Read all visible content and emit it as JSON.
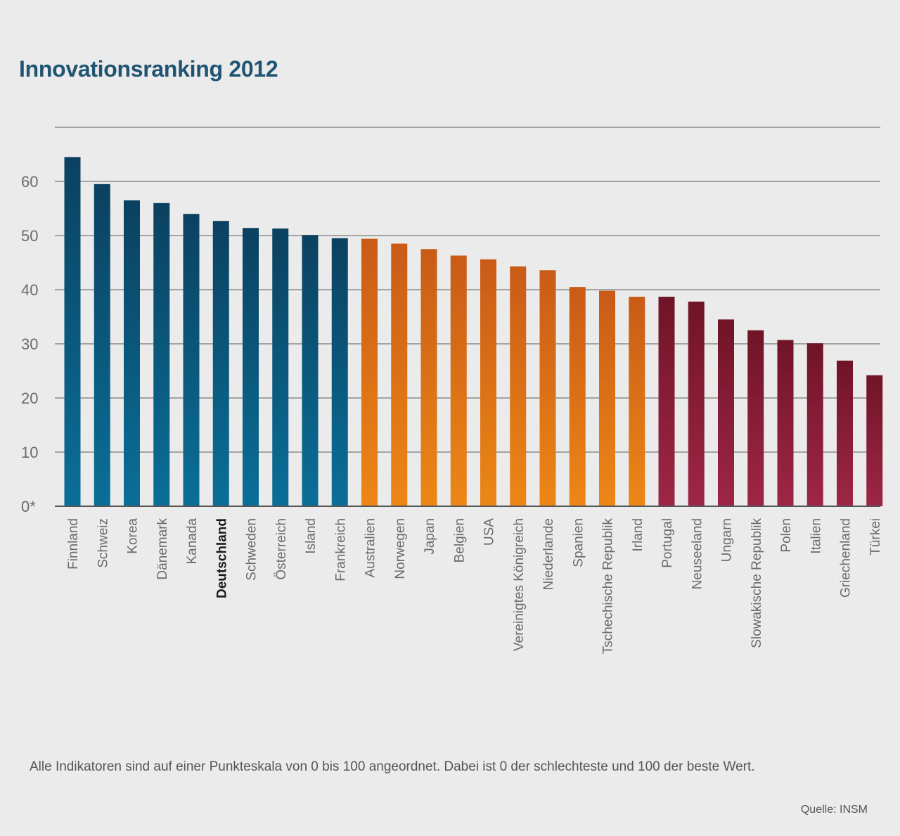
{
  "title": "Innovationsranking 2012",
  "footnote": "Alle Indikatoren sind auf einer Punkteskala von 0 bis 100 angeordnet. Dabei ist 0 der schlechteste und 100 der beste Wert.",
  "source": "Quelle: INSM",
  "chart_data": {
    "type": "bar",
    "title": "Innovationsranking 2012",
    "xlabel": "",
    "ylabel": "",
    "ylim": [
      0,
      70
    ],
    "yticks": [
      0,
      10,
      20,
      30,
      40,
      50,
      60,
      70
    ],
    "ytick_labels": [
      "0*",
      "10",
      "20",
      "30",
      "40",
      "50",
      "60",
      ""
    ],
    "grid": true,
    "highlight": "Deutschland",
    "categories": [
      "Finnland",
      "Schweiz",
      "Korea",
      "Dänemark",
      "Kanada",
      "Deutschland",
      "Schweden",
      "Österreich",
      "Island",
      "Frankreich",
      "Australien",
      "Norwegen",
      "Japan",
      "Belgien",
      "USA",
      "Vereinigtes Königreich",
      "Niederlande",
      "Spanien",
      "Tschechische Republik",
      "Irland",
      "Portugal",
      "Neuseeland",
      "Ungarn",
      "Slowakische Republik",
      "Polen",
      "Italien",
      "Griechenland",
      "Türkei"
    ],
    "values": [
      64.5,
      59.5,
      56.5,
      56,
      54,
      52.7,
      51.4,
      51.3,
      50.1,
      49.5,
      49.4,
      48.5,
      47.5,
      46.3,
      45.6,
      44.3,
      43.6,
      40.5,
      39.8,
      38.7,
      38.7,
      37.8,
      34.5,
      32.5,
      30.7,
      30.1,
      26.9,
      24.2
    ],
    "groups": [
      "blue",
      "blue",
      "blue",
      "blue",
      "blue",
      "blue",
      "blue",
      "blue",
      "blue",
      "blue",
      "orange",
      "orange",
      "orange",
      "orange",
      "orange",
      "orange",
      "orange",
      "orange",
      "orange",
      "orange",
      "red",
      "red",
      "red",
      "red",
      "red",
      "red",
      "red",
      "red"
    ],
    "colors": {
      "blue": [
        "#0a6f98",
        "#0b4160"
      ],
      "orange": [
        "#ec8716",
        "#c95b17"
      ],
      "red": [
        "#9e2646",
        "#701427"
      ],
      "grid": "#a3a3a3",
      "axis": "#555555"
    }
  }
}
